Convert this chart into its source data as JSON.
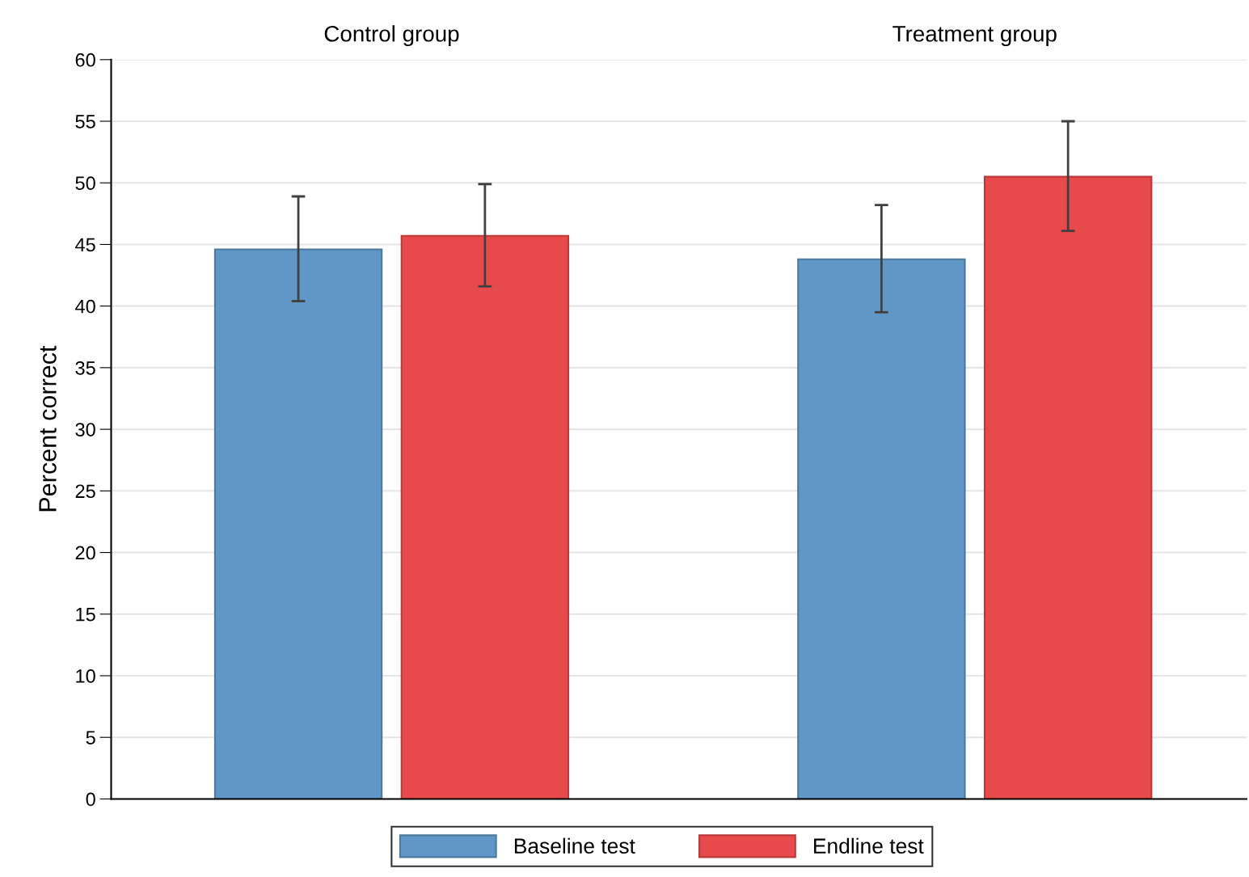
{
  "chart_data": {
    "type": "bar",
    "ylabel": "Percent correct",
    "categories": [
      "Control group",
      "Treatment group"
    ],
    "series": [
      {
        "name": "Baseline test",
        "color": "#6097c6",
        "values": [
          44.6,
          43.8
        ],
        "errors": [
          [
            40.4,
            48.9
          ],
          [
            39.5,
            48.2
          ]
        ]
      },
      {
        "name": "Endline test",
        "color": "#e8494a",
        "values": [
          45.7,
          50.5
        ],
        "errors": [
          [
            41.6,
            49.9
          ],
          [
            46.1,
            55.0
          ]
        ]
      }
    ],
    "ylim": [
      0,
      60
    ],
    "yticks": [
      0,
      5,
      10,
      15,
      20,
      25,
      30,
      35,
      40,
      45,
      50,
      55,
      60
    ],
    "grid": "y",
    "legend": "bottom"
  }
}
